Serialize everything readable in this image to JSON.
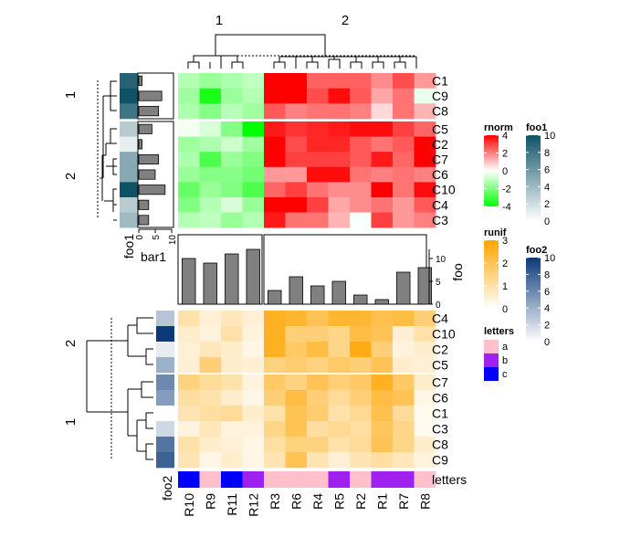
{
  "chart_data": {
    "type": "heatmap",
    "column_split_labels": [
      "1",
      "2"
    ],
    "columns": [
      "R10",
      "R9",
      "R11",
      "R12",
      "R3",
      "R6",
      "R4",
      "R5",
      "R2",
      "R1",
      "R7",
      "R8"
    ],
    "top_heatmap": {
      "name": "rnorm",
      "rows": [
        "C1",
        "C9",
        "C8",
        "C5",
        "C2",
        "C7",
        "C6",
        "C10",
        "C4",
        "C3"
      ],
      "row_split_labels": [
        "1",
        "2"
      ],
      "row_group_sizes": [
        3,
        7
      ],
      "values": [
        [
          -1.2,
          -1.6,
          -1.3,
          -1.0,
          4.0,
          4.0,
          2.5,
          2.5,
          2.5,
          1.8,
          2.8,
          1.6
        ],
        [
          -1.5,
          -3.6,
          -1.6,
          -1.2,
          4.0,
          4.0,
          2.8,
          3.8,
          2.6,
          1.4,
          2.2,
          -0.3
        ],
        [
          -1.3,
          -1.9,
          -1.1,
          -1.5,
          2.6,
          2.0,
          2.2,
          2.2,
          2.0,
          0.6,
          2.2,
          1.2
        ],
        [
          -0.2,
          -0.6,
          -1.9,
          -4.0,
          3.6,
          3.2,
          3.4,
          3.6,
          3.8,
          3.8,
          3.0,
          2.4
        ],
        [
          -1.5,
          -1.3,
          -0.8,
          -1.5,
          4.0,
          2.8,
          3.4,
          3.4,
          2.6,
          2.2,
          2.6,
          4.0
        ],
        [
          -1.3,
          -2.8,
          -1.6,
          -2.0,
          4.0,
          3.0,
          3.0,
          3.0,
          2.6,
          3.6,
          2.4,
          4.0
        ],
        [
          -1.6,
          -1.9,
          -1.9,
          -2.2,
          1.6,
          1.6,
          3.8,
          3.8,
          2.2,
          2.0,
          2.2,
          2.0
        ],
        [
          -2.4,
          -1.6,
          -2.0,
          -2.8,
          2.4,
          3.0,
          2.2,
          1.8,
          1.8,
          4.0,
          2.2,
          3.8
        ],
        [
          -2.0,
          -1.2,
          -0.6,
          -1.6,
          4.0,
          4.0,
          3.0,
          1.4,
          1.8,
          2.2,
          1.6,
          2.6
        ],
        [
          -1.2,
          -1.0,
          -1.6,
          -1.2,
          3.6,
          2.2,
          2.2,
          1.2,
          -0.1,
          3.0,
          1.6,
          2.0
        ]
      ],
      "foo1": [
        9,
        10,
        8,
        3,
        1,
        5,
        5,
        10,
        3,
        4
      ],
      "bar1": [
        1,
        7,
        6,
        4,
        1,
        6,
        5,
        8,
        3,
        3
      ],
      "bar1_ticks": [
        "0",
        "5",
        "10"
      ],
      "bar1_label": "bar1",
      "foo1_label": "foo1"
    },
    "middle_bars": {
      "label": "foo",
      "ticks": [
        "0",
        "5",
        "10"
      ],
      "values": [
        10,
        9,
        11,
        12,
        3,
        6,
        4,
        5,
        2,
        1,
        7,
        8
      ]
    },
    "bottom_heatmap": {
      "name": "runif",
      "rows": [
        "C4",
        "C10",
        "C2",
        "C5",
        "C7",
        "C6",
        "C1",
        "C3",
        "C8",
        "C9"
      ],
      "row_split_labels": [
        "2",
        "1"
      ],
      "row_group_sizes": [
        4,
        6
      ],
      "values": [
        [
          1.0,
          0.5,
          0.8,
          0.5,
          2.6,
          2.4,
          2.0,
          2.4,
          2.4,
          2.1,
          2.2,
          1.6
        ],
        [
          0.6,
          0.4,
          1.0,
          0.4,
          2.6,
          1.6,
          1.6,
          1.4,
          2.2,
          2.0,
          0.5,
          1.0
        ],
        [
          0.5,
          0.8,
          0.6,
          0.3,
          2.6,
          1.8,
          2.2,
          1.4,
          2.8,
          1.6,
          0.4,
          0.6
        ],
        [
          0.5,
          1.6,
          0.6,
          0.5,
          1.5,
          1.7,
          1.5,
          1.8,
          1.6,
          2.0,
          0.6,
          0.5
        ],
        [
          1.5,
          1.2,
          1.0,
          0.4,
          1.8,
          1.5,
          2.0,
          1.6,
          1.8,
          2.6,
          1.8,
          0.6
        ],
        [
          1.1,
          1.0,
          0.6,
          0.3,
          1.6,
          2.2,
          1.6,
          1.2,
          1.6,
          2.2,
          2.0,
          0.3
        ],
        [
          0.9,
          1.1,
          1.2,
          0.6,
          1.0,
          2.0,
          1.7,
          1.0,
          1.3,
          2.1,
          1.2,
          0.2
        ],
        [
          0.4,
          0.8,
          0.4,
          0.4,
          1.4,
          2.0,
          1.1,
          1.3,
          1.1,
          1.9,
          1.4,
          0.2
        ],
        [
          1.0,
          0.6,
          0.5,
          0.3,
          1.1,
          1.5,
          1.5,
          1.0,
          1.2,
          2.0,
          1.4,
          0.6
        ],
        [
          0.9,
          0.3,
          0.6,
          0.3,
          0.9,
          2.0,
          0.9,
          0.5,
          0.9,
          1.1,
          0.8,
          0.4
        ]
      ],
      "foo2": [
        3,
        10,
        1,
        4,
        6,
        5,
        0,
        2,
        7,
        8
      ],
      "foo2_label": "foo2"
    },
    "letters": {
      "label": "letters",
      "values": [
        "c",
        "a",
        "c",
        "b",
        "a",
        "a",
        "a",
        "b",
        "a",
        "b",
        "b",
        "a"
      ]
    },
    "legends": {
      "rnorm": {
        "title": "rnorm",
        "ticks": [
          "4",
          "2",
          "0",
          "-2",
          "-4"
        ]
      },
      "foo1": {
        "title": "foo1",
        "ticks": [
          "10",
          "8",
          "6",
          "4",
          "2",
          "0"
        ]
      },
      "runif": {
        "title": "runif",
        "ticks": [
          "3",
          "2",
          "1",
          "0"
        ]
      },
      "foo2": {
        "title": "foo2",
        "ticks": [
          "10",
          "8",
          "6",
          "4",
          "2",
          "0"
        ]
      },
      "letters": {
        "title": "letters",
        "items": [
          "a",
          "b",
          "c"
        ]
      }
    },
    "colors": {
      "rnorm_low": "#00ff00",
      "rnorm_mid": "#ffffff",
      "rnorm_high": "#ff0000",
      "runif_low": "#ffffff",
      "runif_high": "#ffa500",
      "foo1_low": "#ffffff",
      "foo1_high": "#0e5266",
      "foo2_low": "#ffffff",
      "foo2_high": "#0b3a7a",
      "letter_a": "#ffc0cb",
      "letter_b": "#a020f0",
      "letter_c": "#0000ff",
      "bar_fill": "#808080"
    }
  }
}
